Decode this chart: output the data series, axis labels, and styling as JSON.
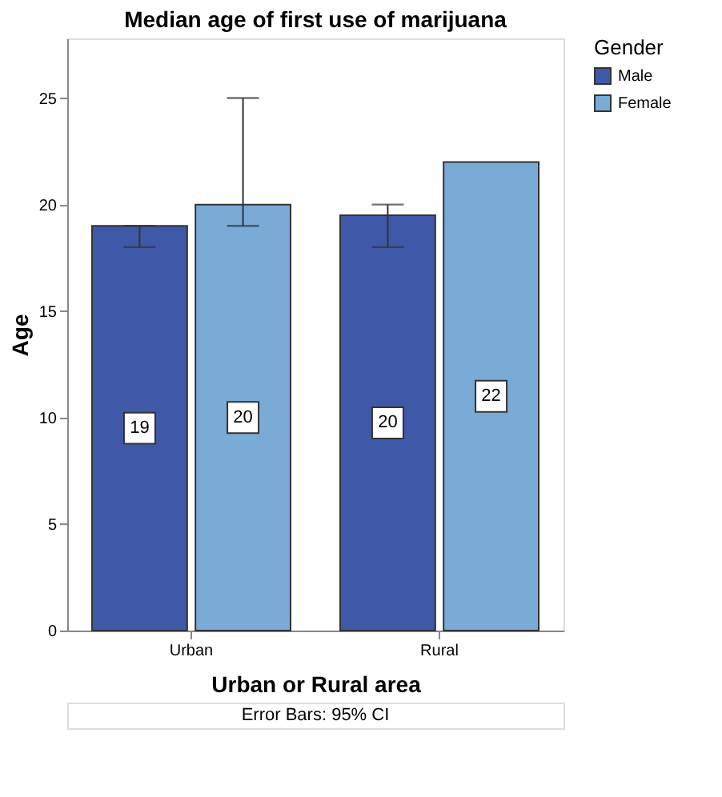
{
  "chart_data": {
    "type": "bar",
    "title": "Median age of first use of marijuana",
    "xlabel": "Urban or Rural area",
    "ylabel": "Age",
    "legend_title": "Gender",
    "categories": [
      "Urban",
      "Rural"
    ],
    "series": [
      {
        "name": "Male",
        "color": "#3f58a8",
        "values": [
          19,
          19.5
        ],
        "value_labels": [
          "19",
          "20"
        ],
        "errors": [
          [
            18,
            19
          ],
          [
            18,
            20
          ]
        ]
      },
      {
        "name": "Female",
        "color": "#7aaad6",
        "values": [
          20,
          22
        ],
        "value_labels": [
          "20",
          "22"
        ],
        "errors": [
          [
            19,
            25
          ],
          null
        ]
      }
    ],
    "ylim": [
      0,
      27.8
    ],
    "yticks": [
      0,
      5,
      10,
      15,
      20,
      25
    ],
    "grid": false,
    "legend": "top right",
    "annotations": [
      "Error Bars: 95% CI"
    ]
  }
}
